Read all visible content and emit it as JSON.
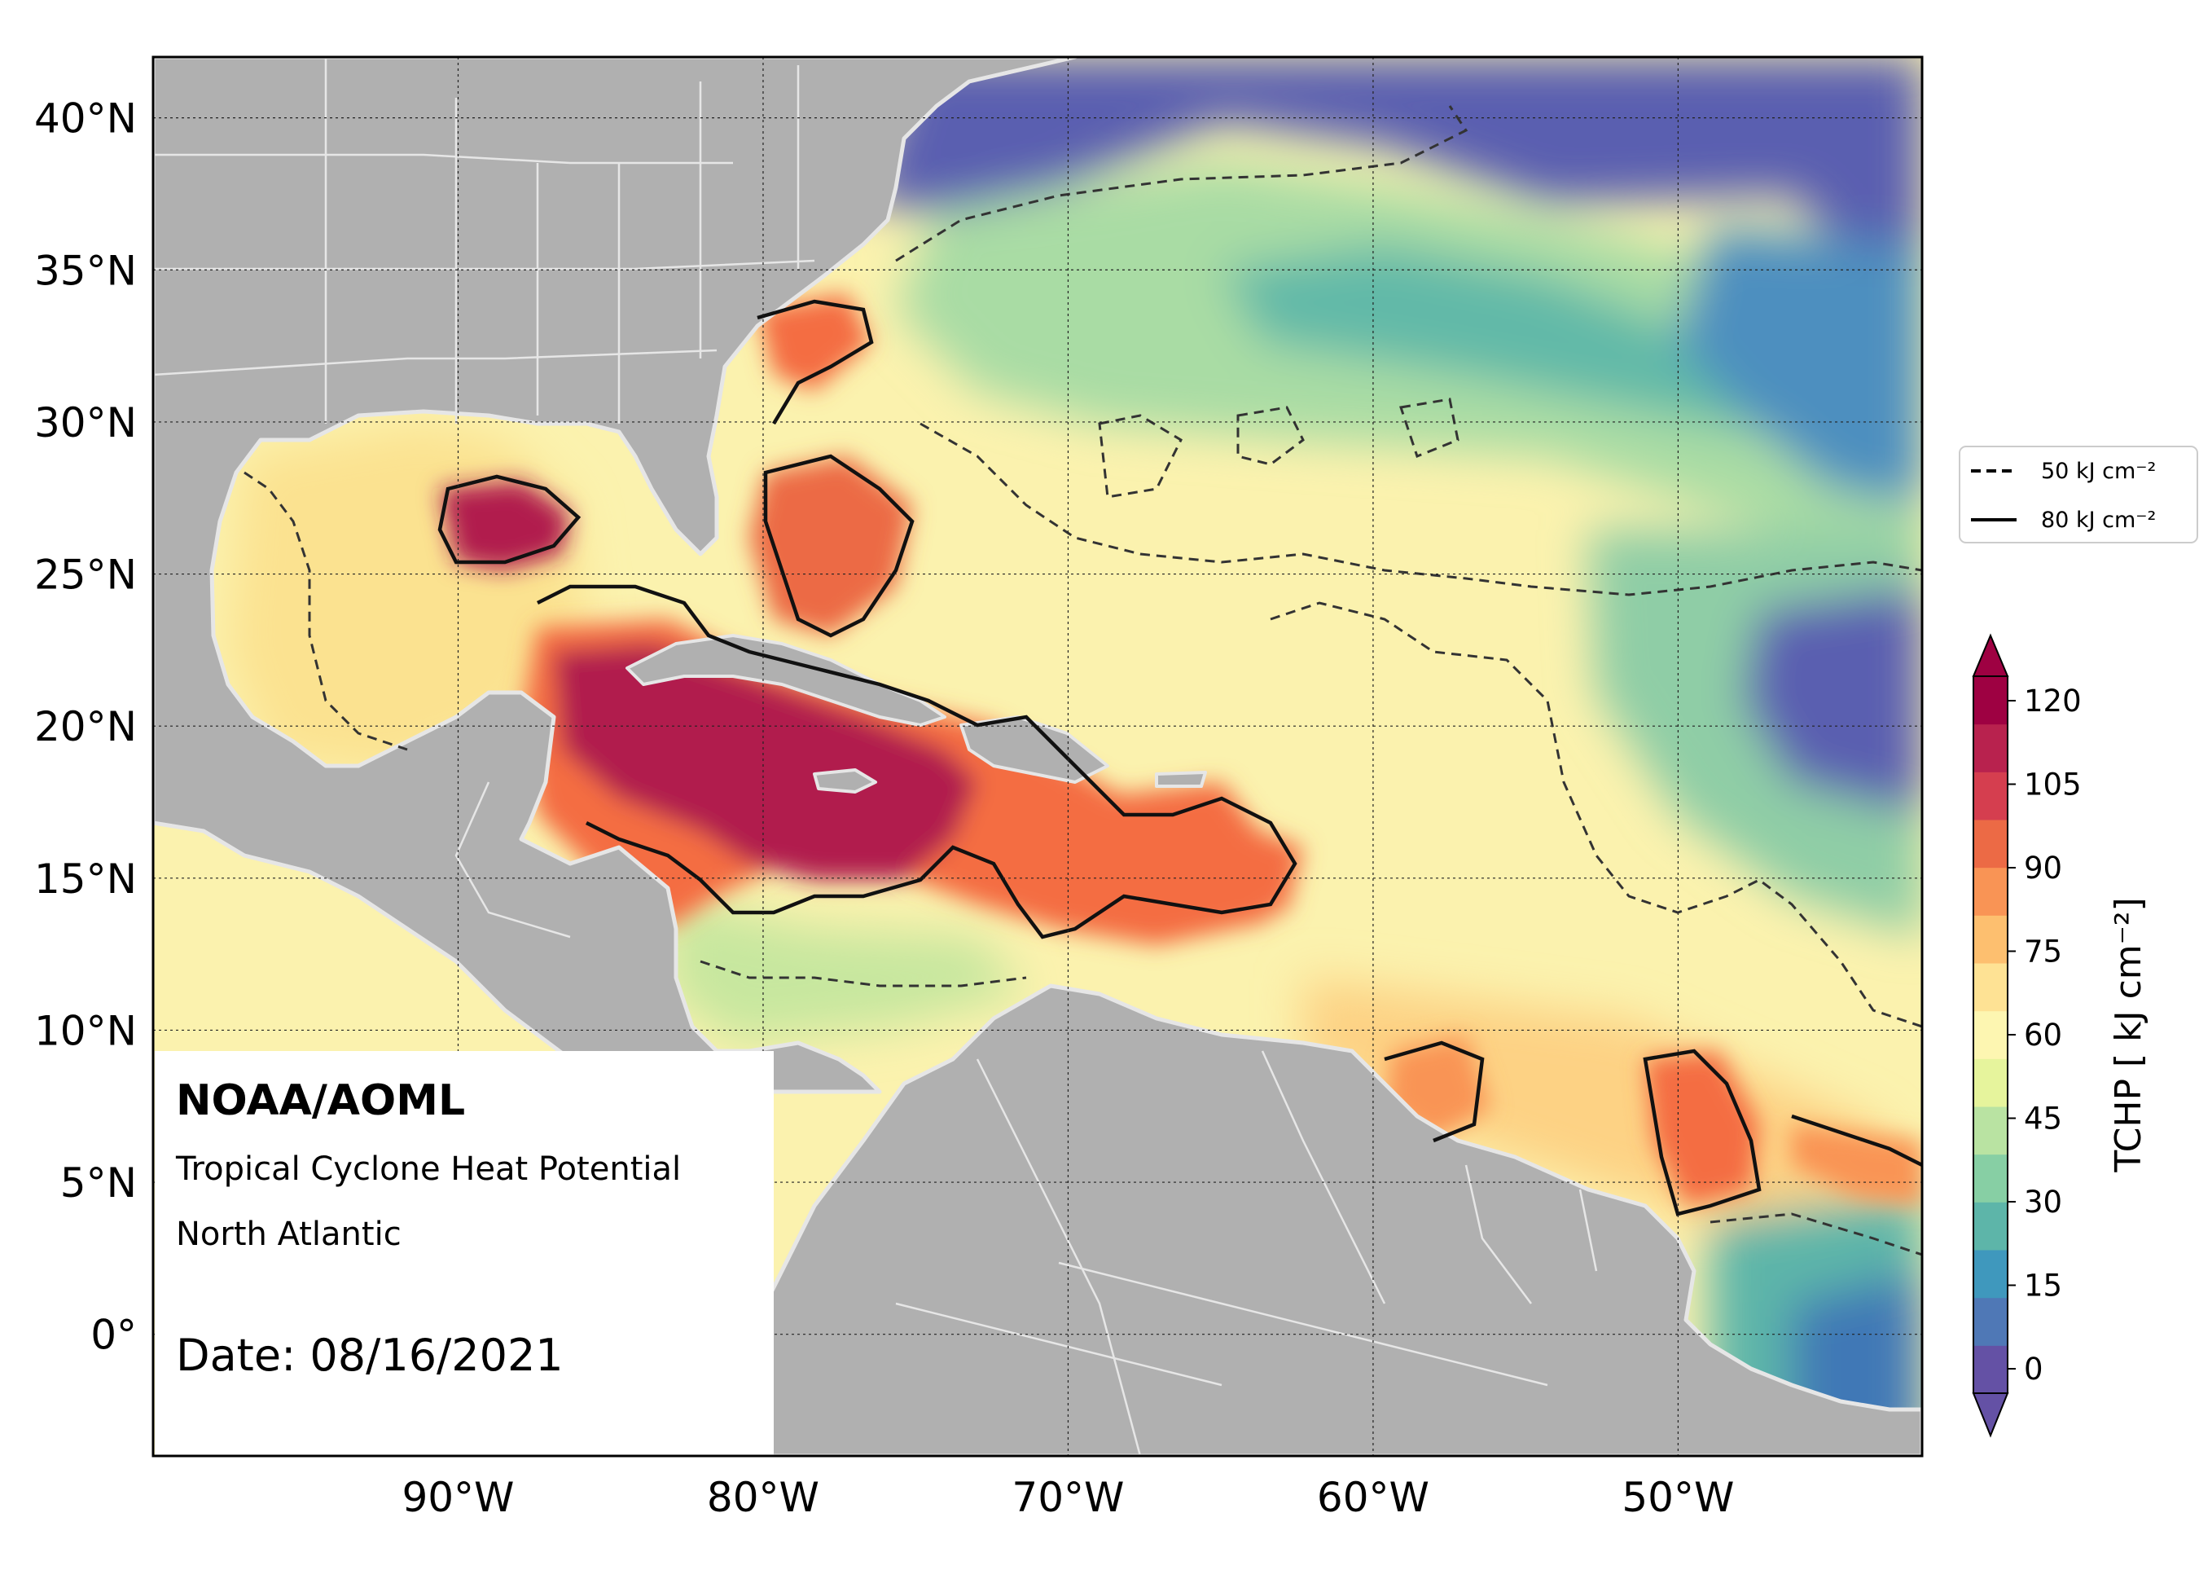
{
  "map": {
    "type": "contourf-map",
    "region": "North Atlantic",
    "extent": {
      "lon_min": -100,
      "lon_max": -42,
      "lat_min": -4,
      "lat_max": 42
    },
    "lat_ticks": [
      {
        "value": 40,
        "label": "40°N"
      },
      {
        "value": 35,
        "label": "35°N"
      },
      {
        "value": 30,
        "label": "30°N"
      },
      {
        "value": 25,
        "label": "25°N"
      },
      {
        "value": 20,
        "label": "20°N"
      },
      {
        "value": 15,
        "label": "15°N"
      },
      {
        "value": 10,
        "label": "10°N"
      },
      {
        "value": 5,
        "label": "5°N"
      },
      {
        "value": 0,
        "label": "0°"
      }
    ],
    "lon_ticks": [
      {
        "value": -90,
        "label": "90°W"
      },
      {
        "value": -80,
        "label": "80°W"
      },
      {
        "value": -70,
        "label": "70°W"
      },
      {
        "value": -60,
        "label": "60°W"
      },
      {
        "value": -50,
        "label": "50°W"
      }
    ],
    "gridlines": true,
    "land_color": "#b0b0b0",
    "border_color": "#e6e6e6",
    "annotation": {
      "org": "NOAA/AOML",
      "product": "Tropical Cyclone Heat Potential",
      "region_label": "North Atlantic",
      "date_label": "Date: 08/16/2021"
    }
  },
  "legend": {
    "placement": "right",
    "items": [
      {
        "style": "dashed",
        "label": "50 kJ cm⁻²",
        "value": 50
      },
      {
        "style": "solid",
        "label": "80 kJ cm⁻²",
        "value": 80
      }
    ]
  },
  "colorbar": {
    "label": "TCHP [ kJ cm⁻²]",
    "ticks": [
      "120",
      "105",
      "90",
      "75",
      "60",
      "45",
      "30",
      "15",
      "0"
    ],
    "min": 0,
    "max": 120,
    "colors": [
      "#6451a5",
      "#4f78b6",
      "#3f98bd",
      "#5db5a9",
      "#87cfa4",
      "#b9e3a2",
      "#e6f49c",
      "#fdf6b1",
      "#fee294",
      "#fdbf6f",
      "#f99455",
      "#ec6a45",
      "#d53e4f",
      "#b8224e",
      "#9e0142"
    ]
  }
}
